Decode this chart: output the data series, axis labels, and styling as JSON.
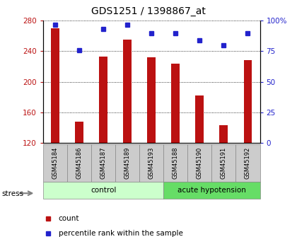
{
  "title": "GDS1251 / 1398867_at",
  "samples": [
    "GSM45184",
    "GSM45186",
    "GSM45187",
    "GSM45189",
    "GSM45193",
    "GSM45188",
    "GSM45190",
    "GSM45191",
    "GSM45192"
  ],
  "counts": [
    270,
    148,
    233,
    255,
    232,
    224,
    182,
    143,
    228
  ],
  "percentiles": [
    97,
    76,
    93,
    97,
    90,
    90,
    84,
    80,
    90
  ],
  "ylim_left": [
    120,
    280
  ],
  "ylim_right": [
    0,
    100
  ],
  "yticks_left": [
    120,
    160,
    200,
    240,
    280
  ],
  "yticks_right": [
    0,
    25,
    50,
    75,
    100
  ],
  "bar_color": "#bb1111",
  "dot_color": "#2222cc",
  "bar_bottom": 120,
  "control_color": "#ccffcc",
  "acute_color": "#66dd66",
  "label_bg_color": "#cccccc",
  "title_fontsize": 10,
  "tick_fontsize": 7.5,
  "n_control": 5,
  "n_acute": 4
}
